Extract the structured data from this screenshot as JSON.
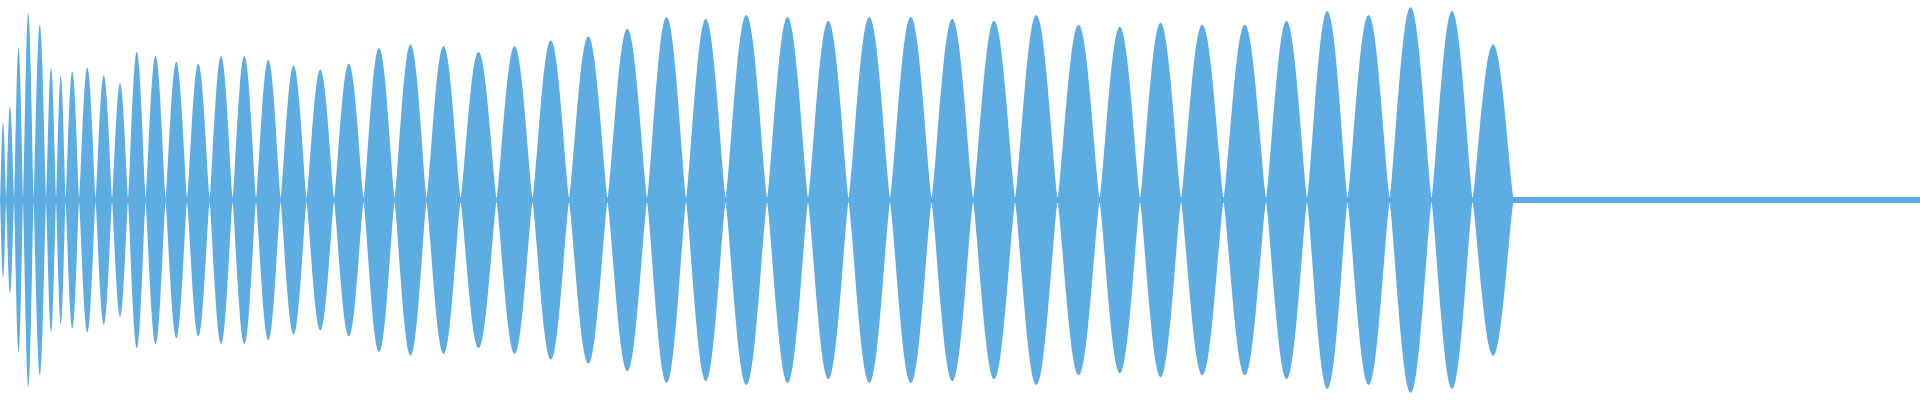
{
  "chart_data": {
    "type": "area",
    "title": "",
    "xlabel": "",
    "ylabel": "",
    "ylim": [
      -1,
      1
    ],
    "grid": false,
    "color": "#5DADE2",
    "lobe_amplitudes": [
      0.4,
      0.48,
      0.78,
      0.96,
      0.9,
      0.68,
      0.64,
      0.66,
      0.68,
      0.64,
      0.6,
      0.76,
      0.74,
      0.71,
      0.7,
      0.74,
      0.74,
      0.72,
      0.69,
      0.67,
      0.7,
      0.78,
      0.8,
      0.79,
      0.76,
      0.79,
      0.82,
      0.84,
      0.88,
      0.94,
      0.93,
      0.95,
      0.94,
      0.92,
      0.94,
      0.94,
      0.93,
      0.92,
      0.95,
      0.9,
      0.89,
      0.91,
      0.9,
      0.9,
      0.92,
      0.97,
      0.95,
      0.99,
      0.97,
      0.8
    ]
  }
}
